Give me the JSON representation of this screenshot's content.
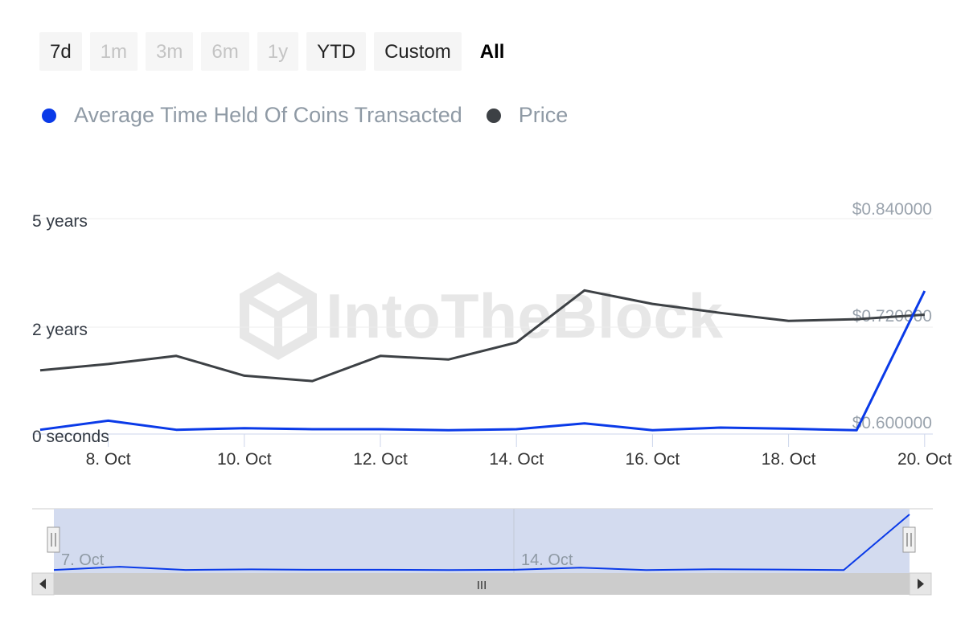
{
  "range_selector": {
    "buttons": [
      {
        "label": "7d",
        "state": "normal"
      },
      {
        "label": "1m",
        "state": "disabled"
      },
      {
        "label": "3m",
        "state": "disabled"
      },
      {
        "label": "6m",
        "state": "disabled"
      },
      {
        "label": "1y",
        "state": "disabled"
      },
      {
        "label": "YTD",
        "state": "normal"
      },
      {
        "label": "Custom",
        "state": "normal"
      },
      {
        "label": "All",
        "state": "active"
      }
    ]
  },
  "watermark": "IntoTheBlock",
  "navigator": {
    "labels": [
      "7. Oct",
      "14. Oct"
    ],
    "scrollbar_grip": "III"
  },
  "chart_data": {
    "type": "line",
    "x": [
      "7. Oct",
      "8. Oct",
      "9. Oct",
      "10. Oct",
      "11. Oct",
      "12. Oct",
      "13. Oct",
      "14. Oct",
      "15. Oct",
      "16. Oct",
      "17. Oct",
      "18. Oct",
      "19. Oct",
      "20. Oct"
    ],
    "x_tick_labels": [
      "8. Oct",
      "10. Oct",
      "12. Oct",
      "14. Oct",
      "16. Oct",
      "18. Oct",
      "20. Oct"
    ],
    "left_axis": {
      "tick_labels": [
        "0 seconds",
        "2 years",
        "5 years"
      ],
      "unit": "years"
    },
    "right_axis": {
      "tick_labels": [
        "$0.600000",
        "$0.720000",
        "$0.840000"
      ],
      "range": [
        0.6,
        0.84
      ]
    },
    "grid": true,
    "legend_position": "top-left",
    "series": [
      {
        "name": "Average Time Held Of Coins Transacted",
        "color": "#0a3ae8",
        "axis": "left",
        "values": [
          0.08,
          0.25,
          0.08,
          0.11,
          0.09,
          0.09,
          0.07,
          0.09,
          0.2,
          0.07,
          0.12,
          0.1,
          0.07,
          3.0
        ]
      },
      {
        "name": "Price",
        "color": "#3d4145",
        "axis": "right",
        "values": [
          0.671,
          0.678,
          0.687,
          0.665,
          0.659,
          0.687,
          0.683,
          0.702,
          0.76,
          0.745,
          0.735,
          0.726,
          0.728,
          0.733
        ]
      }
    ]
  }
}
